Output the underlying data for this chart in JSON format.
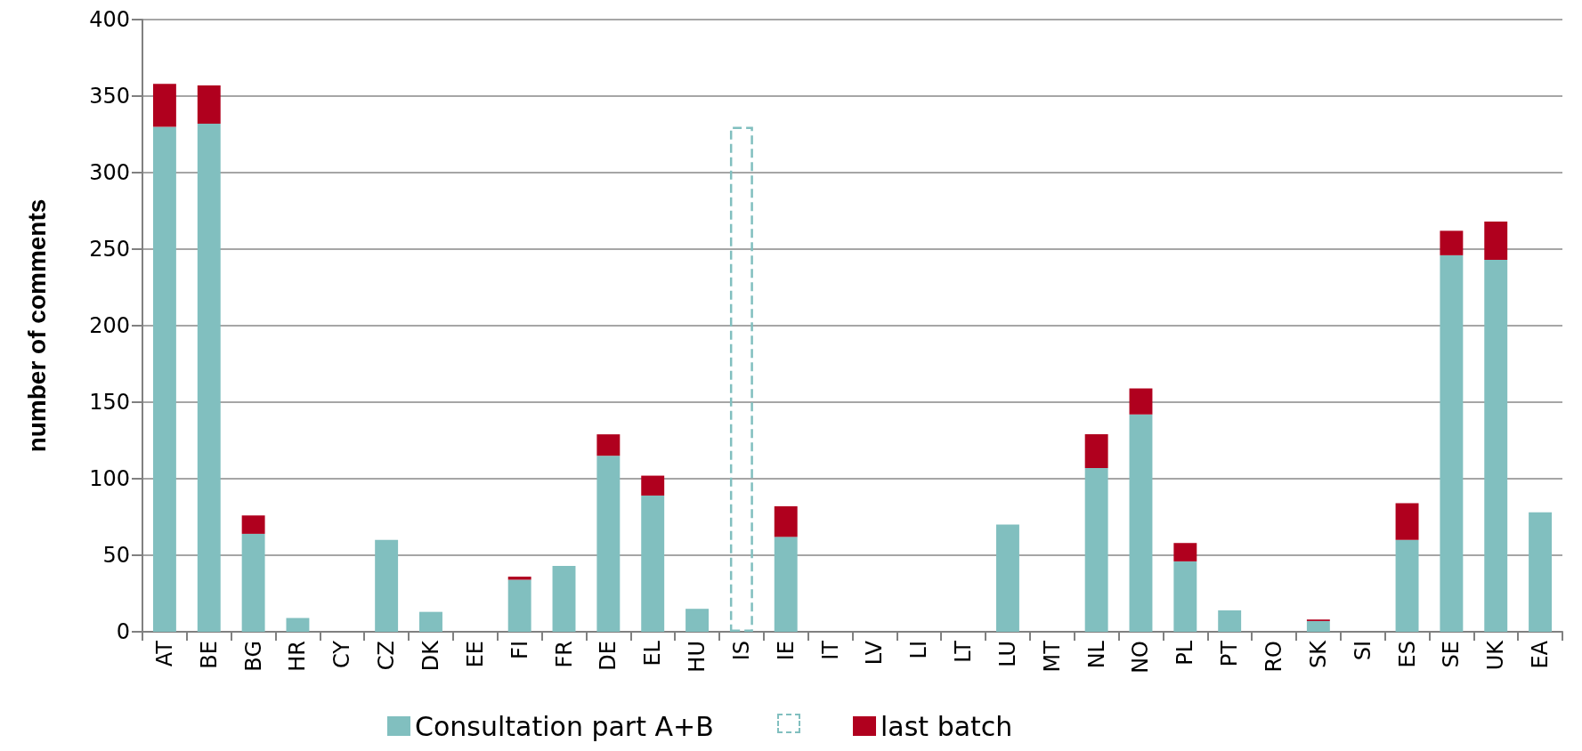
{
  "chart_data": {
    "type": "bar",
    "ylabel": "number of comments",
    "stacked": true,
    "grid": "y",
    "legend": "bottom",
    "categories": [
      "AT",
      "BE",
      "BG",
      "HR",
      "CY",
      "CZ",
      "DK",
      "EE",
      "FI",
      "FR",
      "DE",
      "EL",
      "HU",
      "IS",
      "IE",
      "IT",
      "LV",
      "LI",
      "LT",
      "LU",
      "MT",
      "NL",
      "NO",
      "PL",
      "PT",
      "RO",
      "SK",
      "SI",
      "ES",
      "SE",
      "UK",
      "EA"
    ],
    "ylim": [
      0,
      400
    ],
    "yticks": [
      0,
      50,
      100,
      150,
      200,
      250,
      300,
      350,
      400
    ],
    "series": [
      {
        "name": "Consultation part A+B",
        "color": "#81bfbf",
        "values": [
          330,
          332,
          64,
          9,
          0,
          60,
          13,
          0,
          34,
          43,
          115,
          89,
          15,
          0,
          62,
          0,
          0,
          0,
          0,
          70,
          0,
          107,
          142,
          46,
          14,
          0,
          7,
          0,
          60,
          246,
          243,
          78
        ]
      },
      {
        "color": "#81bfbf",
        "line_style": "dashed",
        "values": [
          null,
          null,
          null,
          null,
          null,
          null,
          null,
          null,
          null,
          null,
          null,
          null,
          null,
          330,
          null,
          null,
          null,
          null,
          null,
          null,
          null,
          null,
          null,
          null,
          null,
          null,
          null,
          null,
          null,
          null,
          null,
          null
        ]
      },
      {
        "name": "last batch",
        "color": "#b0001e",
        "values": [
          28,
          25,
          12,
          null,
          null,
          null,
          null,
          null,
          2,
          null,
          14,
          13,
          null,
          null,
          20,
          null,
          null,
          null,
          null,
          null,
          null,
          22,
          17,
          12,
          null,
          null,
          1,
          null,
          24,
          16,
          25,
          null
        ]
      }
    ]
  }
}
